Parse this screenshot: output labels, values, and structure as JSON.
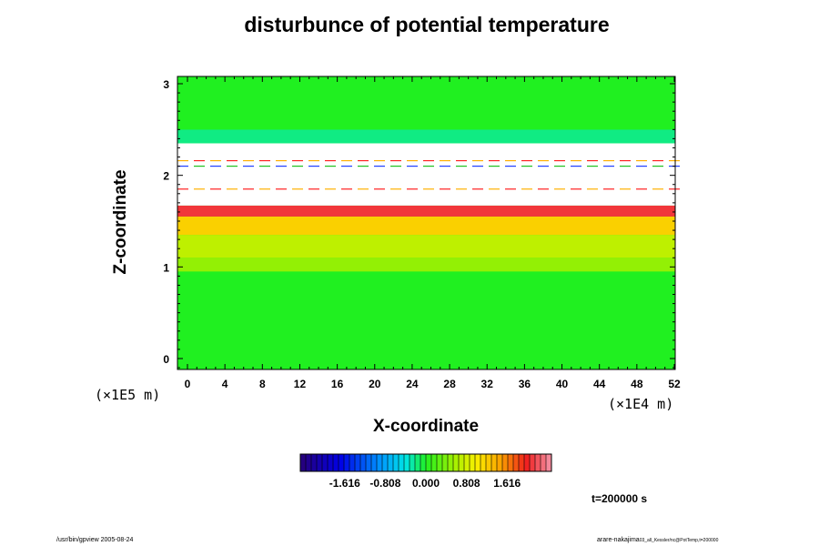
{
  "chart_data": {
    "type": "heatmap",
    "title": "disturbunce of potential temperature",
    "xlabel": "X-coordinate",
    "ylabel": "Z-coordinate",
    "x_unit": "(×1E4 m)",
    "y_unit": "(×1E5 m)",
    "x_ticks": [
      "0",
      "4",
      "8",
      "12",
      "16",
      "20",
      "24",
      "28",
      "32",
      "36",
      "40",
      "44",
      "48",
      "52"
    ],
    "y_ticks": [
      "0",
      "1",
      "2",
      "3"
    ],
    "xlim": [
      0,
      52
    ],
    "ylim": [
      0,
      3
    ],
    "colorbar_labels": [
      "-1.616",
      "-0.808",
      "0.000",
      "0.808",
      "1.616"
    ],
    "colorbar_range": [
      -2.5,
      2.5
    ],
    "layers": [
      {
        "z_range": [
          0,
          0.95
        ],
        "value": 0.0
      },
      {
        "z_range": [
          0.95,
          1.1
        ],
        "value": 0.5
      },
      {
        "z_range": [
          1.1,
          1.35
        ],
        "value": 0.7
      },
      {
        "z_range": [
          1.35,
          1.55
        ],
        "value": 1.2
      },
      {
        "z_range": [
          1.55,
          1.67
        ],
        "value": 2.1
      },
      {
        "z_range": [
          1.67,
          2.35
        ],
        "value": null
      },
      {
        "z_range": [
          2.35,
          2.5
        ],
        "value": -0.2
      },
      {
        "z_range": [
          2.5,
          3.1
        ],
        "value": 0.0
      }
    ],
    "time_label": "t=200000 s"
  },
  "footer": {
    "left": "/usr/bin/gpview 2005-08-24",
    "right": "arare-nakajima",
    "right_sub": "03_all_Kessler/nc@PotTemp,t=200000"
  },
  "colors": {
    "cold": "#2800a0",
    "neutral": "#20f020",
    "warm": "#f02020"
  }
}
